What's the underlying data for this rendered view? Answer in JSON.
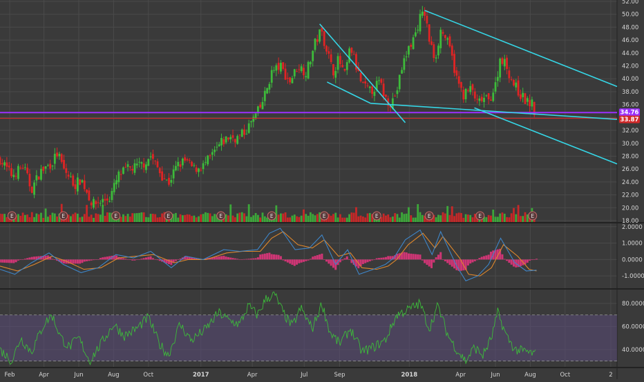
{
  "colors": {
    "background": "#3a3a3a",
    "grid": "#4a4a4a",
    "text": "#d6d6d6",
    "up": "#3dbb3a",
    "down": "#e02424",
    "trendline": "#35d6e6",
    "macd_line": "#3e86c9",
    "macd_signal": "#e0882c",
    "macd_hist": "#e0357c",
    "rsi_line": "#3dbb3a",
    "rsi_band": "#5a4a78",
    "support_line": "#9b30ff",
    "price_line": "#d22a2a"
  },
  "chart_data": [
    {
      "id": "price",
      "type": "candlestick",
      "price_axis": {
        "ticks": [
          "52.00",
          "50.00",
          "48.00",
          "46.00",
          "44.00",
          "42.00",
          "40.00",
          "38.00",
          "36.00",
          "34.00",
          "32.00",
          "30.00",
          "28.00",
          "26.00",
          "24.00",
          "22.00",
          "20.00",
          "18.00"
        ],
        "range": [
          18,
          52
        ]
      },
      "x_axis": {
        "range": [
          "2016-01-15",
          "2018-12-31"
        ],
        "ticks": [
          {
            "label": "Feb",
            "date": "2016-02-01"
          },
          {
            "label": "Apr",
            "date": "2016-04-01"
          },
          {
            "label": "Jun",
            "date": "2016-06-01"
          },
          {
            "label": "Aug",
            "date": "2016-08-01"
          },
          {
            "label": "Oct",
            "date": "2016-10-01"
          },
          {
            "label": "2017",
            "date": "2017-01-01"
          },
          {
            "label": "Apr",
            "date": "2017-04-01"
          },
          {
            "label": "Jul",
            "date": "2017-07-01"
          },
          {
            "label": "Sep",
            "date": "2017-09-01"
          },
          {
            "label": "2018",
            "date": "2018-01-01"
          },
          {
            "label": "Apr",
            "date": "2018-04-01"
          },
          {
            "label": "Jun",
            "date": "2018-06-01"
          },
          {
            "label": "Aug",
            "date": "2018-08-01"
          },
          {
            "label": "Oct",
            "date": "2018-10-01"
          },
          {
            "label": "2",
            "date": "2018-12-20"
          }
        ]
      },
      "price_path": [
        [
          "2016-01-15",
          27.5
        ],
        [
          "2016-02-05",
          25.0
        ],
        [
          "2016-02-25",
          26.5
        ],
        [
          "2016-03-10",
          22.8
        ],
        [
          "2016-03-25",
          25.5
        ],
        [
          "2016-04-15",
          27.0
        ],
        [
          "2016-04-25",
          28.5
        ],
        [
          "2016-05-05",
          26.0
        ],
        [
          "2016-05-15",
          24.8
        ],
        [
          "2016-05-25",
          23.5
        ],
        [
          "2016-06-05",
          24.5
        ],
        [
          "2016-06-15",
          22.5
        ],
        [
          "2016-06-25",
          20.5
        ],
        [
          "2016-07-10",
          21.0
        ],
        [
          "2016-07-25",
          21.5
        ],
        [
          "2016-08-10",
          25.0
        ],
        [
          "2016-08-25",
          26.0
        ],
        [
          "2016-09-10",
          26.3
        ],
        [
          "2016-09-25",
          27.0
        ],
        [
          "2016-10-05",
          28.0
        ],
        [
          "2016-10-15",
          26.5
        ],
        [
          "2016-10-25",
          25.0
        ],
        [
          "2016-11-05",
          23.8
        ],
        [
          "2016-11-20",
          26.5
        ],
        [
          "2016-12-05",
          27.3
        ],
        [
          "2016-12-20",
          26.0
        ],
        [
          "2017-01-05",
          26.5
        ],
        [
          "2017-01-20",
          28.0
        ],
        [
          "2017-02-05",
          30.0
        ],
        [
          "2017-02-20",
          31.0
        ],
        [
          "2017-03-05",
          30.8
        ],
        [
          "2017-03-20",
          31.8
        ],
        [
          "2017-04-01",
          33.5
        ],
        [
          "2017-04-15",
          35.5
        ],
        [
          "2017-04-25",
          38.0
        ],
        [
          "2017-05-05",
          41.0
        ],
        [
          "2017-05-20",
          42.0
        ],
        [
          "2017-06-05",
          39.5
        ],
        [
          "2017-06-20",
          42.0
        ],
        [
          "2017-07-05",
          41.0
        ],
        [
          "2017-07-20",
          45.5
        ],
        [
          "2017-07-30",
          47.5
        ],
        [
          "2017-08-10",
          44.5
        ],
        [
          "2017-08-20",
          41.0
        ],
        [
          "2017-08-30",
          43.0
        ],
        [
          "2017-09-10",
          40.5
        ],
        [
          "2017-09-20",
          45.0
        ],
        [
          "2017-10-01",
          41.5
        ],
        [
          "2017-10-10",
          39.0
        ],
        [
          "2017-10-25",
          38.0
        ],
        [
          "2017-11-10",
          39.5
        ],
        [
          "2017-11-20",
          37.0
        ],
        [
          "2017-11-30",
          36.2
        ],
        [
          "2017-12-10",
          38.0
        ],
        [
          "2017-12-20",
          42.0
        ],
        [
          "2018-01-01",
          45.0
        ],
        [
          "2018-01-10",
          46.5
        ],
        [
          "2018-01-20",
          49.5
        ],
        [
          "2018-01-28",
          50.2
        ],
        [
          "2018-02-05",
          46.0
        ],
        [
          "2018-02-15",
          43.0
        ],
        [
          "2018-02-25",
          47.5
        ],
        [
          "2018-03-05",
          46.5
        ],
        [
          "2018-03-15",
          44.0
        ],
        [
          "2018-03-25",
          40.0
        ],
        [
          "2018-04-05",
          37.5
        ],
        [
          "2018-04-20",
          38.5
        ],
        [
          "2018-05-01",
          36.0
        ],
        [
          "2018-05-10",
          37.0
        ],
        [
          "2018-05-20",
          36.5
        ],
        [
          "2018-06-01",
          39.0
        ],
        [
          "2018-06-10",
          43.5
        ],
        [
          "2018-06-20",
          42.0
        ],
        [
          "2018-07-01",
          39.5
        ],
        [
          "2018-07-15",
          37.5
        ],
        [
          "2018-07-25",
          36.5
        ],
        [
          "2018-08-05",
          36.0
        ],
        [
          "2018-08-10",
          34.0
        ]
      ],
      "horizontal_lines": [
        {
          "value": 34.76,
          "label": "34.76",
          "color": "#9b30ff"
        },
        {
          "value": 33.87,
          "label": "33.87",
          "color": "#d22a2a"
        }
      ],
      "trendlines": [
        {
          "from": [
            "2017-07-28",
            48.5
          ],
          "to": [
            "2017-12-25",
            33.2
          ]
        },
        {
          "from": [
            "2017-08-10",
            39.5
          ],
          "to": [
            "2017-10-25",
            36.2
          ]
        },
        {
          "from": [
            "2018-01-28",
            50.6
          ],
          "to": [
            "2018-12-31",
            38.8
          ]
        },
        {
          "from": [
            "2017-10-25",
            36.2
          ],
          "to": [
            "2018-12-31",
            33.7
          ]
        },
        {
          "from": [
            "2018-04-25",
            35.5
          ],
          "to": [
            "2018-12-31",
            26.8
          ]
        }
      ],
      "earnings_markers": {
        "label": "E",
        "dates": [
          "2016-02-05",
          "2016-05-05",
          "2016-08-05",
          "2016-11-05",
          "2017-02-05",
          "2017-05-05",
          "2017-08-05",
          "2017-11-05",
          "2018-02-05",
          "2018-05-05",
          "2018-08-05"
        ]
      },
      "volume": {
        "level": 0.6
      }
    },
    {
      "id": "macd",
      "type": "line",
      "y_axis": {
        "ticks": [
          "2.0000",
          "1.0000",
          "0.0000",
          "-1.0000"
        ],
        "range": [
          -1.75,
          2.2
        ]
      },
      "series_macd": [
        [
          "2016-01-15",
          -0.6
        ],
        [
          "2016-02-10",
          -0.9
        ],
        [
          "2016-03-10",
          -0.2
        ],
        [
          "2016-04-10",
          0.4
        ],
        [
          "2016-05-05",
          -0.3
        ],
        [
          "2016-06-05",
          -0.8
        ],
        [
          "2016-07-05",
          -0.5
        ],
        [
          "2016-08-05",
          0.3
        ],
        [
          "2016-09-05",
          0.1
        ],
        [
          "2016-10-05",
          0.5
        ],
        [
          "2016-11-10",
          -0.5
        ],
        [
          "2016-12-05",
          0.2
        ],
        [
          "2017-01-05",
          0.0
        ],
        [
          "2017-02-10",
          0.6
        ],
        [
          "2017-03-10",
          0.5
        ],
        [
          "2017-04-10",
          0.6
        ],
        [
          "2017-05-01",
          1.6
        ],
        [
          "2017-05-20",
          1.9
        ],
        [
          "2017-06-15",
          0.6
        ],
        [
          "2017-07-10",
          0.7
        ],
        [
          "2017-08-01",
          1.5
        ],
        [
          "2017-08-25",
          -0.3
        ],
        [
          "2017-09-15",
          0.6
        ],
        [
          "2017-10-05",
          -0.9
        ],
        [
          "2017-10-30",
          -0.6
        ],
        [
          "2017-11-20",
          -0.3
        ],
        [
          "2017-12-05",
          0.1
        ],
        [
          "2017-12-25",
          1.2
        ],
        [
          "2018-01-20",
          1.8
        ],
        [
          "2018-02-10",
          0.3
        ],
        [
          "2018-02-25",
          1.7
        ],
        [
          "2018-03-25",
          -0.4
        ],
        [
          "2018-04-10",
          -1.3
        ],
        [
          "2018-05-01",
          -1.0
        ],
        [
          "2018-05-20",
          -0.3
        ],
        [
          "2018-06-10",
          1.3
        ],
        [
          "2018-07-05",
          -0.2
        ],
        [
          "2018-07-25",
          -0.7
        ],
        [
          "2018-08-12",
          -0.65
        ]
      ],
      "series_signal": [
        [
          "2016-01-15",
          -0.4
        ],
        [
          "2016-02-15",
          -0.7
        ],
        [
          "2016-03-15",
          -0.3
        ],
        [
          "2016-04-15",
          0.2
        ],
        [
          "2016-05-10",
          -0.1
        ],
        [
          "2016-06-10",
          -0.6
        ],
        [
          "2016-07-10",
          -0.5
        ],
        [
          "2016-08-10",
          0.1
        ],
        [
          "2016-09-10",
          0.2
        ],
        [
          "2016-10-10",
          0.3
        ],
        [
          "2016-11-15",
          -0.2
        ],
        [
          "2016-12-10",
          0.0
        ],
        [
          "2017-01-10",
          0.0
        ],
        [
          "2017-02-15",
          0.4
        ],
        [
          "2017-03-15",
          0.5
        ],
        [
          "2017-04-15",
          0.5
        ],
        [
          "2017-05-05",
          1.3
        ],
        [
          "2017-05-25",
          1.7
        ],
        [
          "2017-06-20",
          0.9
        ],
        [
          "2017-07-15",
          0.7
        ],
        [
          "2017-08-05",
          1.2
        ],
        [
          "2017-08-30",
          0.2
        ],
        [
          "2017-09-20",
          0.4
        ],
        [
          "2017-10-10",
          -0.5
        ],
        [
          "2017-11-05",
          -0.6
        ],
        [
          "2017-11-25",
          -0.4
        ],
        [
          "2017-12-10",
          0.0
        ],
        [
          "2017-12-30",
          0.9
        ],
        [
          "2018-01-25",
          1.6
        ],
        [
          "2018-02-15",
          0.7
        ],
        [
          "2018-03-01",
          1.4
        ],
        [
          "2018-03-30",
          0.1
        ],
        [
          "2018-04-15",
          -0.9
        ],
        [
          "2018-05-05",
          -1.0
        ],
        [
          "2018-05-25",
          -0.5
        ],
        [
          "2018-06-15",
          0.9
        ],
        [
          "2018-07-10",
          0.2
        ],
        [
          "2018-07-30",
          -0.6
        ],
        [
          "2018-08-12",
          -0.7
        ]
      ]
    },
    {
      "id": "rsi",
      "type": "line",
      "y_axis": {
        "ticks": [
          "80.0000",
          "60.0000",
          "40.0000"
        ],
        "range": [
          25,
          92
        ]
      },
      "band": [
        30,
        70
      ],
      "series": [
        [
          "2016-01-15",
          40
        ],
        [
          "2016-02-05",
          30
        ],
        [
          "2016-02-20",
          50
        ],
        [
          "2016-03-10",
          38
        ],
        [
          "2016-04-01",
          62
        ],
        [
          "2016-04-15",
          70
        ],
        [
          "2016-05-01",
          50
        ],
        [
          "2016-05-15",
          42
        ],
        [
          "2016-06-01",
          50
        ],
        [
          "2016-06-20",
          30
        ],
        [
          "2016-07-10",
          45
        ],
        [
          "2016-08-01",
          62
        ],
        [
          "2016-08-20",
          52
        ],
        [
          "2016-09-10",
          58
        ],
        [
          "2016-10-01",
          68
        ],
        [
          "2016-10-20",
          45
        ],
        [
          "2016-11-05",
          35
        ],
        [
          "2016-11-25",
          62
        ],
        [
          "2016-12-15",
          48
        ],
        [
          "2017-01-10",
          58
        ],
        [
          "2017-02-01",
          72
        ],
        [
          "2017-02-20",
          65
        ],
        [
          "2017-03-10",
          62
        ],
        [
          "2017-03-25",
          78
        ],
        [
          "2017-04-10",
          70
        ],
        [
          "2017-04-25",
          84
        ],
        [
          "2017-05-10",
          88
        ],
        [
          "2017-05-25",
          72
        ],
        [
          "2017-06-10",
          60
        ],
        [
          "2017-06-25",
          76
        ],
        [
          "2017-07-15",
          58
        ],
        [
          "2017-08-01",
          80
        ],
        [
          "2017-08-15",
          55
        ],
        [
          "2017-09-01",
          45
        ],
        [
          "2017-09-20",
          58
        ],
        [
          "2017-10-10",
          38
        ],
        [
          "2017-10-30",
          42
        ],
        [
          "2017-11-20",
          48
        ],
        [
          "2017-12-10",
          70
        ],
        [
          "2018-01-01",
          75
        ],
        [
          "2018-01-20",
          80
        ],
        [
          "2018-02-05",
          58
        ],
        [
          "2018-02-20",
          78
        ],
        [
          "2018-03-10",
          52
        ],
        [
          "2018-03-25",
          40
        ],
        [
          "2018-04-10",
          30
        ],
        [
          "2018-04-25",
          42
        ],
        [
          "2018-05-10",
          35
        ],
        [
          "2018-05-25",
          50
        ],
        [
          "2018-06-05",
          72
        ],
        [
          "2018-06-20",
          52
        ],
        [
          "2018-07-05",
          40
        ],
        [
          "2018-07-25",
          38
        ],
        [
          "2018-08-10",
          36
        ]
      ]
    }
  ]
}
